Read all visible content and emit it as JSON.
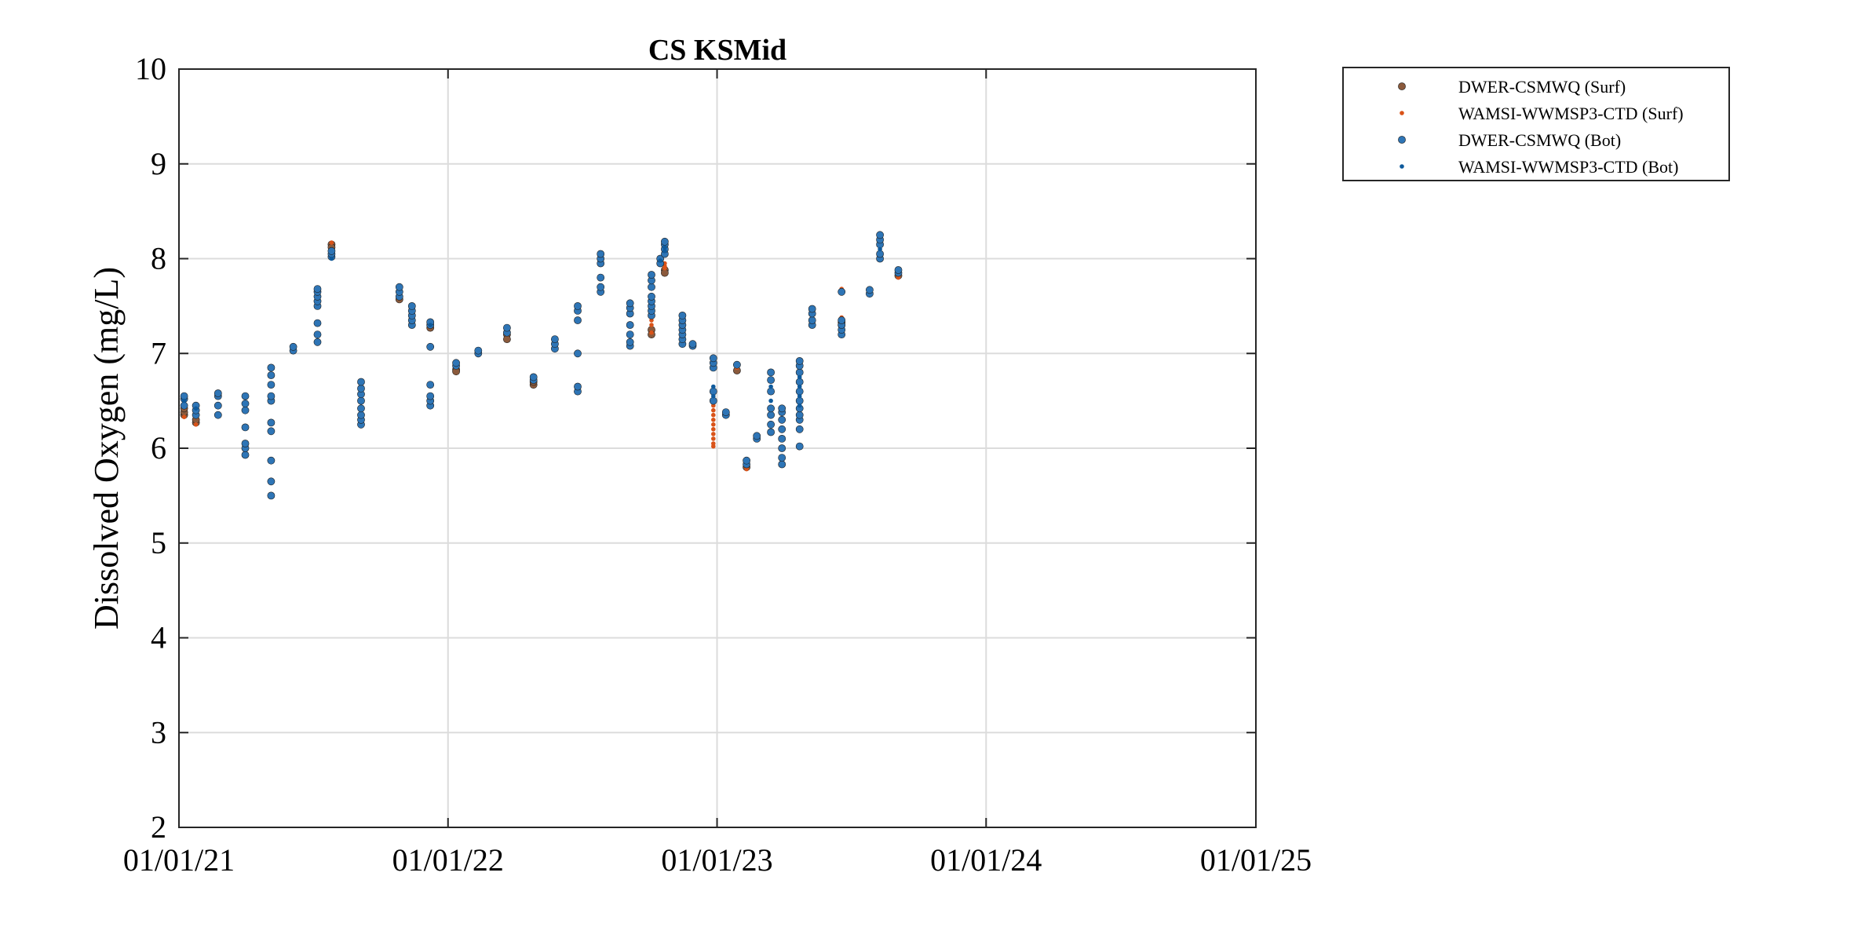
{
  "chart_data": {
    "type": "scatter",
    "title": "CS KSMid",
    "xlabel": "",
    "ylabel": "Dissolved Oxygen (mg/L)",
    "x_type": "date",
    "xlim": [
      "2021-01-01",
      "2025-01-01"
    ],
    "x_ticks": [
      "2021-01-01",
      "2022-01-01",
      "2023-01-01",
      "2024-01-01",
      "2025-01-01"
    ],
    "x_tick_labels": [
      "01/01/21",
      "01/01/22",
      "01/01/23",
      "01/01/24",
      "01/01/25"
    ],
    "ylim": [
      2,
      10
    ],
    "y_ticks": [
      2,
      3,
      4,
      5,
      6,
      7,
      8,
      9,
      10
    ],
    "grid": true,
    "legend_position": "outside-top-right",
    "series": [
      {
        "name": "DWER-CSMWQ (Surf)",
        "color": "#8B5A3C",
        "marker": "large-dot",
        "points": [
          [
            "2021-01-08",
            6.35
          ],
          [
            "2021-01-08",
            6.38
          ],
          [
            "2021-01-08",
            6.42
          ],
          [
            "2021-01-24",
            6.27
          ],
          [
            "2021-01-24",
            6.3
          ],
          [
            "2021-07-27",
            8.15
          ],
          [
            "2021-07-27",
            8.12
          ],
          [
            "2021-10-27",
            7.57
          ],
          [
            "2021-12-08",
            7.27
          ],
          [
            "2022-01-12",
            6.83
          ],
          [
            "2022-01-12",
            6.81
          ],
          [
            "2022-03-22",
            7.2
          ],
          [
            "2022-03-22",
            7.15
          ],
          [
            "2022-04-27",
            6.67
          ],
          [
            "2022-04-27",
            6.7
          ],
          [
            "2022-10-04",
            7.25
          ],
          [
            "2022-10-04",
            7.2
          ],
          [
            "2022-10-22",
            7.88
          ],
          [
            "2022-10-22",
            7.85
          ],
          [
            "2023-01-28",
            6.82
          ],
          [
            "2023-02-10",
            5.8
          ],
          [
            "2023-06-19",
            7.33
          ],
          [
            "2023-06-19",
            7.3
          ],
          [
            "2023-09-04",
            7.82
          ]
        ]
      },
      {
        "name": "WAMSI-WWMSP3-CTD (Surf)",
        "color": "#D95319",
        "marker": "small-dot",
        "points": [
          [
            "2021-01-08",
            6.33
          ],
          [
            "2021-01-24",
            6.25
          ],
          [
            "2021-07-27",
            8.17
          ],
          [
            "2022-10-04",
            7.3
          ],
          [
            "2022-10-04",
            7.22
          ],
          [
            "2022-10-04",
            7.35
          ],
          [
            "2022-10-22",
            7.95
          ],
          [
            "2022-10-22",
            7.92
          ],
          [
            "2022-10-22",
            7.9
          ],
          [
            "2022-12-27",
            6.05
          ],
          [
            "2022-12-27",
            6.1
          ],
          [
            "2022-12-27",
            6.15
          ],
          [
            "2022-12-27",
            6.2
          ],
          [
            "2022-12-27",
            6.25
          ],
          [
            "2022-12-27",
            6.3
          ],
          [
            "2022-12-27",
            6.35
          ],
          [
            "2022-12-27",
            6.4
          ],
          [
            "2022-12-27",
            6.45
          ],
          [
            "2022-12-27",
            6.02
          ],
          [
            "2023-01-28",
            6.85
          ],
          [
            "2023-02-10",
            5.78
          ],
          [
            "2023-06-19",
            7.38
          ],
          [
            "2023-06-19",
            7.68
          ],
          [
            "2023-09-04",
            7.8
          ]
        ]
      },
      {
        "name": "DWER-CSMWQ (Bot)",
        "color": "#2E75B6",
        "marker": "large-dot",
        "points": [
          [
            "2021-01-08",
            6.45
          ],
          [
            "2021-01-08",
            6.52
          ],
          [
            "2021-01-08",
            6.55
          ],
          [
            "2021-01-24",
            6.35
          ],
          [
            "2021-01-24",
            6.4
          ],
          [
            "2021-01-24",
            6.45
          ],
          [
            "2021-02-23",
            6.35
          ],
          [
            "2021-02-23",
            6.45
          ],
          [
            "2021-02-23",
            6.55
          ],
          [
            "2021-02-23",
            6.58
          ],
          [
            "2021-04-01",
            5.93
          ],
          [
            "2021-04-01",
            6.0
          ],
          [
            "2021-04-01",
            6.05
          ],
          [
            "2021-04-01",
            6.22
          ],
          [
            "2021-04-01",
            6.4
          ],
          [
            "2021-04-01",
            6.47
          ],
          [
            "2021-04-01",
            6.55
          ],
          [
            "2021-05-06",
            5.5
          ],
          [
            "2021-05-06",
            5.65
          ],
          [
            "2021-05-06",
            5.87
          ],
          [
            "2021-05-06",
            6.18
          ],
          [
            "2021-05-06",
            6.27
          ],
          [
            "2021-05-06",
            6.5
          ],
          [
            "2021-05-06",
            6.55
          ],
          [
            "2021-05-06",
            6.67
          ],
          [
            "2021-05-06",
            6.77
          ],
          [
            "2021-05-06",
            6.85
          ],
          [
            "2021-06-05",
            7.03
          ],
          [
            "2021-06-05",
            7.07
          ],
          [
            "2021-07-08",
            7.12
          ],
          [
            "2021-07-08",
            7.2
          ],
          [
            "2021-07-08",
            7.32
          ],
          [
            "2021-07-08",
            7.5
          ],
          [
            "2021-07-08",
            7.55
          ],
          [
            "2021-07-08",
            7.6
          ],
          [
            "2021-07-08",
            7.65
          ],
          [
            "2021-07-08",
            7.68
          ],
          [
            "2021-07-27",
            8.02
          ],
          [
            "2021-07-27",
            8.05
          ],
          [
            "2021-07-27",
            8.08
          ],
          [
            "2021-09-05",
            6.25
          ],
          [
            "2021-09-05",
            6.3
          ],
          [
            "2021-09-05",
            6.35
          ],
          [
            "2021-09-05",
            6.42
          ],
          [
            "2021-09-05",
            6.5
          ],
          [
            "2021-09-05",
            6.57
          ],
          [
            "2021-09-05",
            6.63
          ],
          [
            "2021-09-05",
            6.7
          ],
          [
            "2021-10-27",
            7.6
          ],
          [
            "2021-10-27",
            7.65
          ],
          [
            "2021-10-27",
            7.7
          ],
          [
            "2021-11-13",
            7.3
          ],
          [
            "2021-11-13",
            7.35
          ],
          [
            "2021-11-13",
            7.4
          ],
          [
            "2021-11-13",
            7.45
          ],
          [
            "2021-11-13",
            7.5
          ],
          [
            "2021-12-08",
            6.45
          ],
          [
            "2021-12-08",
            6.5
          ],
          [
            "2021-12-08",
            6.55
          ],
          [
            "2021-12-08",
            6.67
          ],
          [
            "2021-12-08",
            7.07
          ],
          [
            "2021-12-08",
            7.3
          ],
          [
            "2021-12-08",
            7.33
          ],
          [
            "2022-01-12",
            6.87
          ],
          [
            "2022-01-12",
            6.9
          ],
          [
            "2022-02-11",
            7.0
          ],
          [
            "2022-02-11",
            7.03
          ],
          [
            "2022-03-22",
            7.22
          ],
          [
            "2022-03-22",
            7.27
          ],
          [
            "2022-04-27",
            6.72
          ],
          [
            "2022-04-27",
            6.75
          ],
          [
            "2022-05-26",
            7.05
          ],
          [
            "2022-05-26",
            7.1
          ],
          [
            "2022-05-26",
            7.15
          ],
          [
            "2022-06-26",
            6.6
          ],
          [
            "2022-06-26",
            6.65
          ],
          [
            "2022-06-26",
            7.0
          ],
          [
            "2022-06-26",
            7.35
          ],
          [
            "2022-06-26",
            7.45
          ],
          [
            "2022-06-26",
            7.5
          ],
          [
            "2022-07-27",
            7.65
          ],
          [
            "2022-07-27",
            7.7
          ],
          [
            "2022-07-27",
            7.8
          ],
          [
            "2022-07-27",
            7.95
          ],
          [
            "2022-07-27",
            8.0
          ],
          [
            "2022-07-27",
            8.05
          ],
          [
            "2022-09-05",
            7.08
          ],
          [
            "2022-09-05",
            7.12
          ],
          [
            "2022-09-05",
            7.2
          ],
          [
            "2022-09-05",
            7.3
          ],
          [
            "2022-09-05",
            7.42
          ],
          [
            "2022-09-05",
            7.48
          ],
          [
            "2022-09-05",
            7.53
          ],
          [
            "2022-10-04",
            7.4
          ],
          [
            "2022-10-04",
            7.45
          ],
          [
            "2022-10-04",
            7.5
          ],
          [
            "2022-10-04",
            7.55
          ],
          [
            "2022-10-04",
            7.6
          ],
          [
            "2022-10-04",
            7.7
          ],
          [
            "2022-10-04",
            7.77
          ],
          [
            "2022-10-04",
            7.83
          ],
          [
            "2022-10-16",
            7.95
          ],
          [
            "2022-10-16",
            8.0
          ],
          [
            "2022-10-22",
            8.05
          ],
          [
            "2022-10-22",
            8.1
          ],
          [
            "2022-10-22",
            8.15
          ],
          [
            "2022-10-22",
            8.18
          ],
          [
            "2022-11-15",
            7.1
          ],
          [
            "2022-11-15",
            7.15
          ],
          [
            "2022-11-15",
            7.2
          ],
          [
            "2022-11-15",
            7.25
          ],
          [
            "2022-11-15",
            7.3
          ],
          [
            "2022-11-15",
            7.35
          ],
          [
            "2022-11-15",
            7.4
          ],
          [
            "2022-11-29",
            7.08
          ],
          [
            "2022-11-29",
            7.1
          ],
          [
            "2022-12-27",
            6.5
          ],
          [
            "2022-12-27",
            6.6
          ],
          [
            "2022-12-27",
            6.85
          ],
          [
            "2022-12-27",
            6.9
          ],
          [
            "2022-12-27",
            6.95
          ],
          [
            "2023-01-13",
            6.35
          ],
          [
            "2023-01-13",
            6.38
          ],
          [
            "2023-01-28",
            6.88
          ],
          [
            "2023-02-10",
            5.83
          ],
          [
            "2023-02-10",
            5.87
          ],
          [
            "2023-02-24",
            6.1
          ],
          [
            "2023-02-24",
            6.13
          ],
          [
            "2023-03-15",
            6.17
          ],
          [
            "2023-03-15",
            6.25
          ],
          [
            "2023-03-15",
            6.35
          ],
          [
            "2023-03-15",
            6.42
          ],
          [
            "2023-03-15",
            6.6
          ],
          [
            "2023-03-15",
            6.72
          ],
          [
            "2023-03-15",
            6.8
          ],
          [
            "2023-03-30",
            5.83
          ],
          [
            "2023-03-30",
            5.9
          ],
          [
            "2023-03-30",
            6.0
          ],
          [
            "2023-03-30",
            6.1
          ],
          [
            "2023-03-30",
            6.2
          ],
          [
            "2023-03-30",
            6.3
          ],
          [
            "2023-03-30",
            6.38
          ],
          [
            "2023-03-30",
            6.42
          ],
          [
            "2023-04-23",
            6.02
          ],
          [
            "2023-04-23",
            6.2
          ],
          [
            "2023-04-23",
            6.3
          ],
          [
            "2023-04-23",
            6.35
          ],
          [
            "2023-04-23",
            6.42
          ],
          [
            "2023-04-23",
            6.5
          ],
          [
            "2023-04-23",
            6.6
          ],
          [
            "2023-04-23",
            6.7
          ],
          [
            "2023-04-23",
            6.8
          ],
          [
            "2023-04-23",
            6.87
          ],
          [
            "2023-04-23",
            6.92
          ],
          [
            "2023-05-10",
            7.3
          ],
          [
            "2023-05-10",
            7.35
          ],
          [
            "2023-05-10",
            7.42
          ],
          [
            "2023-05-10",
            7.47
          ],
          [
            "2023-06-19",
            7.2
          ],
          [
            "2023-06-19",
            7.25
          ],
          [
            "2023-06-19",
            7.3
          ],
          [
            "2023-06-19",
            7.35
          ],
          [
            "2023-06-19",
            7.65
          ],
          [
            "2023-07-27",
            7.63
          ],
          [
            "2023-07-27",
            7.67
          ],
          [
            "2023-08-10",
            8.0
          ],
          [
            "2023-08-10",
            8.05
          ],
          [
            "2023-08-10",
            8.15
          ],
          [
            "2023-08-10",
            8.2
          ],
          [
            "2023-08-10",
            8.25
          ],
          [
            "2023-09-04",
            7.85
          ],
          [
            "2023-09-04",
            7.88
          ]
        ]
      },
      {
        "name": "WAMSI-WWMSP3-CTD (Bot)",
        "color": "#0E5A9C",
        "marker": "small-dot",
        "points": [
          [
            "2021-01-08",
            6.5
          ],
          [
            "2021-01-24",
            6.42
          ],
          [
            "2021-07-27",
            8.0
          ],
          [
            "2021-12-08",
            7.3
          ],
          [
            "2022-10-16",
            7.98
          ],
          [
            "2022-10-22",
            8.08
          ],
          [
            "2022-10-22",
            8.12
          ],
          [
            "2022-12-27",
            6.55
          ],
          [
            "2022-12-27",
            6.65
          ],
          [
            "2023-03-15",
            6.5
          ],
          [
            "2023-03-15",
            6.65
          ],
          [
            "2023-04-23",
            6.45
          ],
          [
            "2023-04-23",
            6.55
          ],
          [
            "2023-04-23",
            6.65
          ],
          [
            "2023-04-23",
            6.75
          ],
          [
            "2023-08-10",
            8.1
          ]
        ]
      }
    ]
  }
}
